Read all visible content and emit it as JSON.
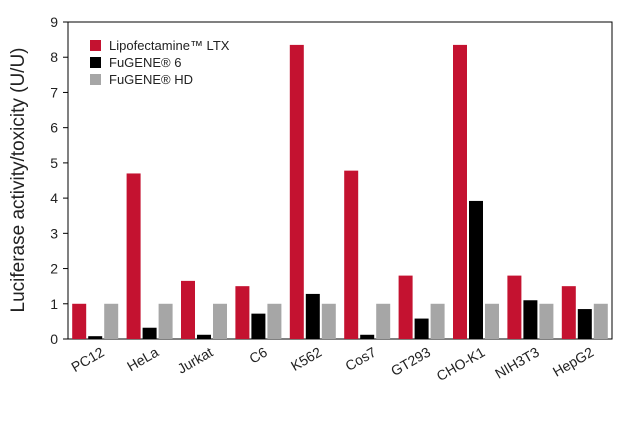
{
  "chart_data": {
    "type": "bar",
    "title": "",
    "xlabel": "",
    "ylabel": "Luciferase activity/toxicity (U/U)",
    "ylim": [
      0,
      9
    ],
    "yticks": [
      0,
      1,
      2,
      3,
      4,
      5,
      6,
      7,
      8,
      9
    ],
    "grid": false,
    "legend_position": "top-left",
    "categories": [
      "PC12",
      "HeLa",
      "Jurkat",
      "C6",
      "K562",
      "Cos7",
      "GT293",
      "CHO-K1",
      "NIH3T3",
      "HepG2"
    ],
    "series": [
      {
        "name": "Lipofectamine™ LTX",
        "color": "#c41230",
        "values": [
          1.0,
          4.7,
          1.65,
          1.5,
          8.35,
          4.78,
          1.8,
          8.35,
          1.8,
          1.5
        ]
      },
      {
        "name": "FuGENE® 6",
        "color": "#000000",
        "values": [
          0.08,
          0.32,
          0.12,
          0.72,
          1.28,
          0.12,
          0.58,
          3.92,
          1.1,
          0.85
        ]
      },
      {
        "name": "FuGENE® HD",
        "color": "#a6a6a6",
        "values": [
          1.0,
          1.0,
          1.0,
          1.0,
          1.0,
          1.0,
          1.0,
          1.0,
          1.0,
          1.0
        ]
      }
    ]
  }
}
